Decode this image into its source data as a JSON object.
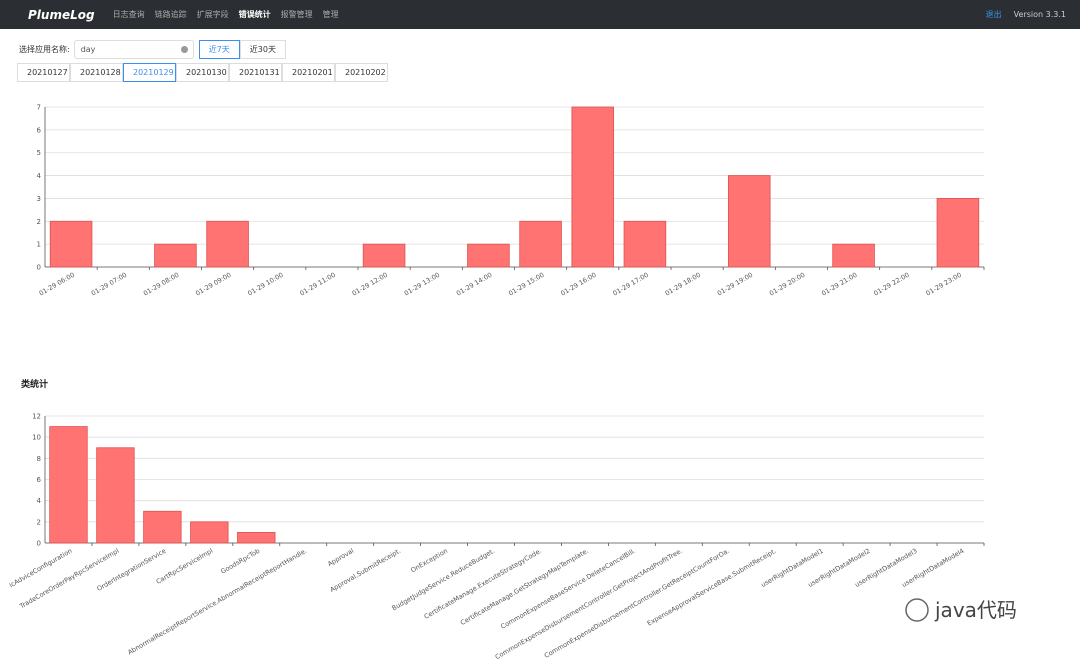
{
  "nav": {
    "logo": "PlumeLog",
    "items": [
      "日志查询",
      "链路追踪",
      "扩展字段",
      "错误统计",
      "报警管理",
      "管理"
    ],
    "active": 3,
    "logout": "退出",
    "version": "Version 3.3.1"
  },
  "filter": {
    "label": "选择应用名称:",
    "input": "day",
    "ranges": [
      "近7天",
      "近30天"
    ],
    "active_range": 0
  },
  "dates": {
    "items": [
      "20210127",
      "20210128",
      "20210129",
      "20210130",
      "20210131",
      "20210201",
      "20210202"
    ],
    "active": 2
  },
  "charts": [
    {
      "type": "bar",
      "color": "#ff7373",
      "categories": [
        "01-29 06:00",
        "01-29 07:00",
        "01-29 08:00",
        "01-29 09:00",
        "01-29 10:00",
        "01-29 11:00",
        "01-29 12:00",
        "01-29 13:00",
        "01-29 14:00",
        "01-29 15:00",
        "01-29 16:00",
        "01-29 17:00",
        "01-29 18:00",
        "01-29 19:00",
        "01-29 20:00",
        "01-29 21:00",
        "01-29 22:00",
        "01-29 23:00"
      ],
      "values": [
        2,
        0,
        1,
        2,
        0,
        0,
        1,
        0,
        1,
        2,
        7,
        2,
        0,
        4,
        0,
        1,
        0,
        3
      ],
      "ylim": [
        0,
        7
      ],
      "yticks": [
        0,
        1,
        2,
        3,
        4,
        5,
        6,
        7
      ],
      "grid": true
    },
    {
      "type": "bar",
      "title": "类统计",
      "color": "#ff7373",
      "categories": [
        "icAdviceConfiguration",
        "TradeCoreOrderPayRpcServiceImpl",
        "OrderIntegrationService",
        "CartRpcServiceImpl",
        "GoodsRpcTob",
        "AbnormalReceiptReportService.AbnormalReceiptReportHandle.",
        "Approval",
        "Approval.SubmitReceipt.",
        "OnException",
        "BudgetJudgeService.ReduceBudget.",
        "CertificateManage.ExecuteStrategyCode.",
        "CertificateManage.GetStrategyMapTemplate.",
        "CommonExpenseBaseService.DeleteCancelBill.",
        "CommonExpenseDisbursementController.GetProjectAndProfitTree.",
        "CommonExpenseDisbursementController.GetReceiptCountForOa.",
        "ExpenseApprovalServiceBase.SubmitReceipt.",
        "userRightDataModel1",
        "userRightDataModel2",
        "userRightDataModel3",
        "userRightDataModel4"
      ],
      "values": [
        11,
        9,
        3,
        2,
        1,
        0,
        0,
        0,
        0,
        0,
        0,
        0,
        0,
        0,
        0,
        0,
        0,
        0,
        0,
        0
      ],
      "ylim": [
        0,
        12
      ],
      "yticks": [
        0,
        2,
        4,
        6,
        8,
        10,
        12
      ],
      "grid": true
    }
  ],
  "watermark": "java代码"
}
